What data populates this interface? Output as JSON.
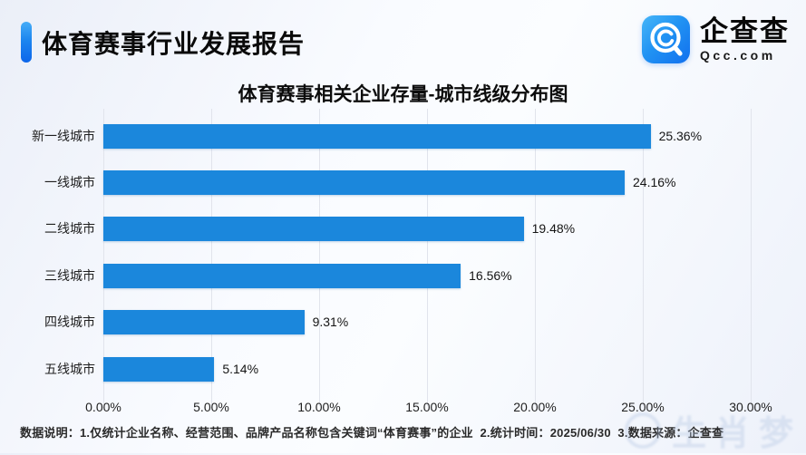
{
  "header": {
    "title": "体育赛事行业发展报告"
  },
  "logo": {
    "name": "企查查",
    "domain": "Qcc.com"
  },
  "chart_data": {
    "type": "bar",
    "orientation": "horizontal",
    "title": "体育赛事相关企业存量-城市线级分布图",
    "categories": [
      "新一线城市",
      "一线城市",
      "二线城市",
      "三线城市",
      "四线城市",
      "五线城市"
    ],
    "values": [
      25.36,
      24.16,
      19.48,
      16.56,
      9.31,
      5.14
    ],
    "value_labels": [
      "25.36%",
      "24.16%",
      "19.48%",
      "16.56%",
      "9.31%",
      "5.14%"
    ],
    "x_ticks": [
      "0.00%",
      "5.00%",
      "10.00%",
      "15.00%",
      "20.00%",
      "25.00%",
      "30.00%"
    ],
    "xlim": [
      0,
      30
    ],
    "xlabel": "",
    "ylabel": "",
    "grid": true,
    "legend": false,
    "bar_color": "#1b87dc"
  },
  "footer": {
    "note": "数据说明：1.仅统计企业名称、经营范围、品牌产品名称包含关键词“体育赛事”的企业  2.统计时间：2025/06/30  3.数据来源：企查查"
  },
  "watermark": "生肖梦",
  "colors": {
    "bar": "#1b87dc",
    "accent_gradient_top": "#45acf7",
    "accent_gradient_bottom": "#0d66ea",
    "gridline": "#e1e4ec",
    "background": "#f4f7fd"
  }
}
